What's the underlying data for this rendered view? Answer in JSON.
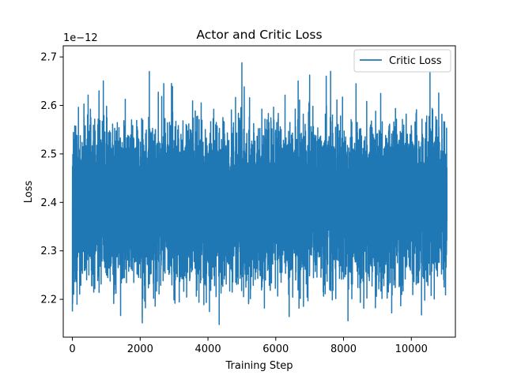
{
  "chart_data": {
    "type": "line",
    "title": "Actor and Critic Loss",
    "xlabel": "Training Step",
    "ylabel": "Loss",
    "offset_text": "1e−12",
    "xlim": [
      -270,
      11300
    ],
    "ylim": [
      2.122,
      2.723
    ],
    "xticks": [
      0,
      2000,
      4000,
      6000,
      8000,
      10000
    ],
    "yticks": [
      2.2,
      2.3,
      2.4,
      2.5,
      2.6,
      2.7
    ],
    "ytick_labels": [
      "2.2",
      "2.3",
      "2.4",
      "2.5",
      "2.6",
      "2.7"
    ],
    "legend_position": "top-right",
    "grid": false,
    "series": [
      {
        "name": "Critic Loss",
        "color": "#1f77b4",
        "n_points": 11050,
        "x_range": [
          0,
          11050
        ],
        "y_min": 2.148,
        "y_max": 2.688,
        "typical_low": 2.25,
        "typical_high": 2.55,
        "notable_points": [
          {
            "x": 0,
            "y": 2.175
          },
          {
            "x": 2270,
            "y": 2.67
          },
          {
            "x": 2060,
            "y": 2.163
          },
          {
            "x": 4330,
            "y": 2.148
          },
          {
            "x": 5000,
            "y": 2.688
          },
          {
            "x": 10550,
            "y": 2.668
          },
          {
            "x": 10300,
            "y": 2.168
          }
        ]
      }
    ]
  }
}
